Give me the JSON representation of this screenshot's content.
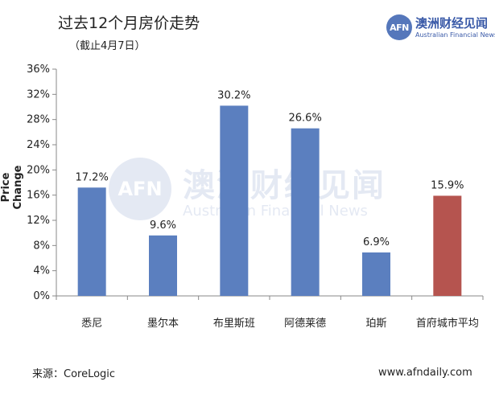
{
  "header": {
    "title": "过去12个月房价走势",
    "subtitle": "（截止4月7日）"
  },
  "logo": {
    "mark": "AFN",
    "name_cn": "澳洲财经见闻",
    "name_en": "Australian Financial News"
  },
  "footer": {
    "source": "来源：CoreLogic",
    "website": "www.afndaily.com"
  },
  "colors": {
    "bar_default": "#5b7fbf",
    "bar_highlight": "#b5544f",
    "axis": "#888888"
  },
  "chart_data": {
    "type": "bar",
    "title": "过去12个月房价走势",
    "subtitle": "（截止4月7日）",
    "xlabel": "",
    "ylabel": "Price Change",
    "categories": [
      "悉尼",
      "墨尔本",
      "布里斯班",
      "阿德莱德",
      "珀斯",
      "首府城市平均"
    ],
    "values": [
      17.2,
      9.6,
      30.2,
      26.6,
      6.9,
      15.9
    ],
    "data_labels": [
      "17.2%",
      "9.6%",
      "30.2%",
      "26.6%",
      "6.9%",
      "15.9%"
    ],
    "highlight": [
      false,
      false,
      false,
      false,
      false,
      true
    ],
    "ylim": [
      0,
      36
    ],
    "yticks": [
      0,
      4,
      8,
      12,
      16,
      20,
      24,
      28,
      32,
      36
    ],
    "ytick_labels": [
      "0%",
      "4%",
      "8%",
      "12%",
      "16%",
      "20%",
      "24%",
      "28%",
      "32%",
      "36%"
    ],
    "grid": false,
    "legend": "none"
  }
}
